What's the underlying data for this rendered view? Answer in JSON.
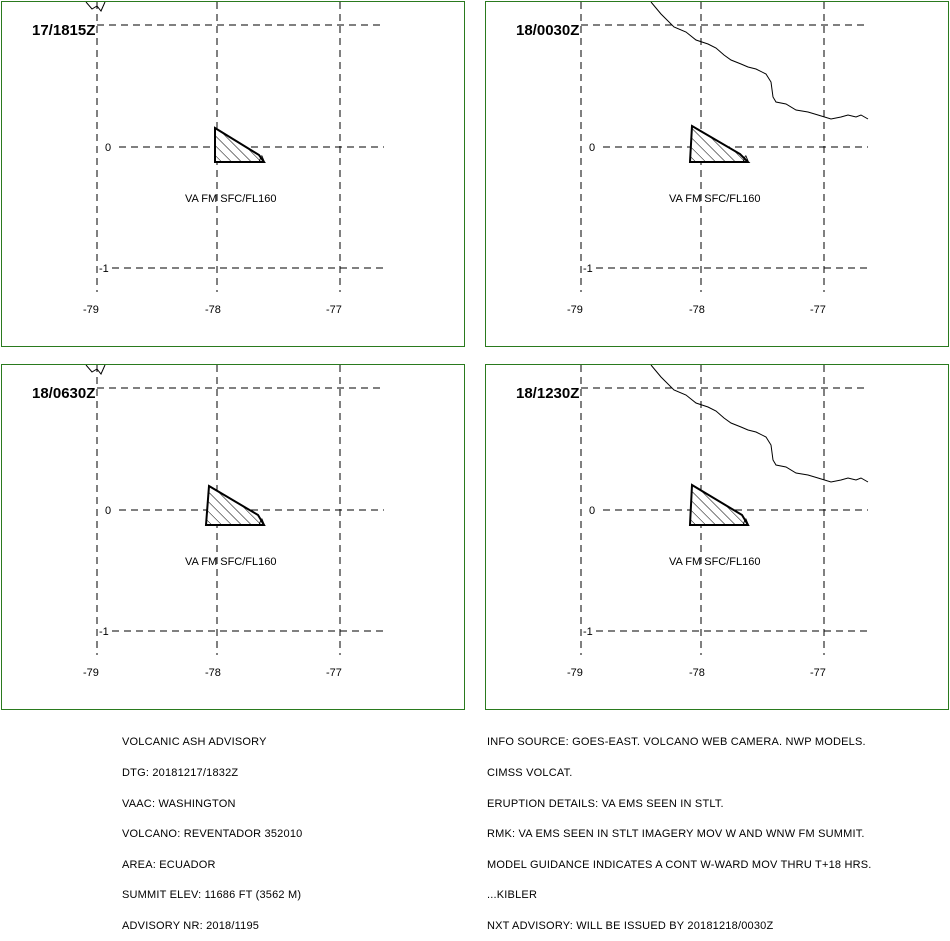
{
  "panels": [
    {
      "dtg": "17/1815Z",
      "levels": "VA FM SFC/FL160"
    },
    {
      "dtg": "18/0030Z",
      "levels": "VA FM SFC/FL160"
    },
    {
      "dtg": "18/0630Z",
      "levels": "VA FM SFC/FL160"
    },
    {
      "dtg": "18/1230Z",
      "levels": "VA FM SFC/FL160"
    }
  ],
  "axes": {
    "lon_ticks": [
      "-79",
      "-78",
      "-77"
    ],
    "lat_ticks": [
      "0",
      "-1"
    ]
  },
  "colors": {
    "frame": "#2a7a1e",
    "ink": "#000000",
    "background": "#ffffff"
  },
  "advisory_left": [
    "VOLCANIC ASH ADVISORY",
    "DTG: 20181217/1832Z",
    "VAAC: WASHINGTON",
    "VOLCANO: REVENTADOR 352010",
    "AREA: ECUADOR",
    "SUMMIT ELEV: 11686 FT (3562 M)",
    "ADVISORY NR: 2018/1195"
  ],
  "advisory_right": [
    "INFO SOURCE: GOES-EAST. VOLCANO WEB CAMERA. NWP MODELS.",
    "CIMSS VOLCAT.",
    "ERUPTION DETAILS: VA EMS SEEN IN STLT.",
    "RMK: VA EMS SEEN IN STLT IMAGERY MOV W AND WNW FM SUMMIT.",
    "MODEL GUIDANCE INDICATES A CONT W-WARD MOV THRU T+18 HRS.",
    "...KIBLER",
    "NXT ADVISORY: WILL BE ISSUED BY 20181218/0030Z"
  ]
}
